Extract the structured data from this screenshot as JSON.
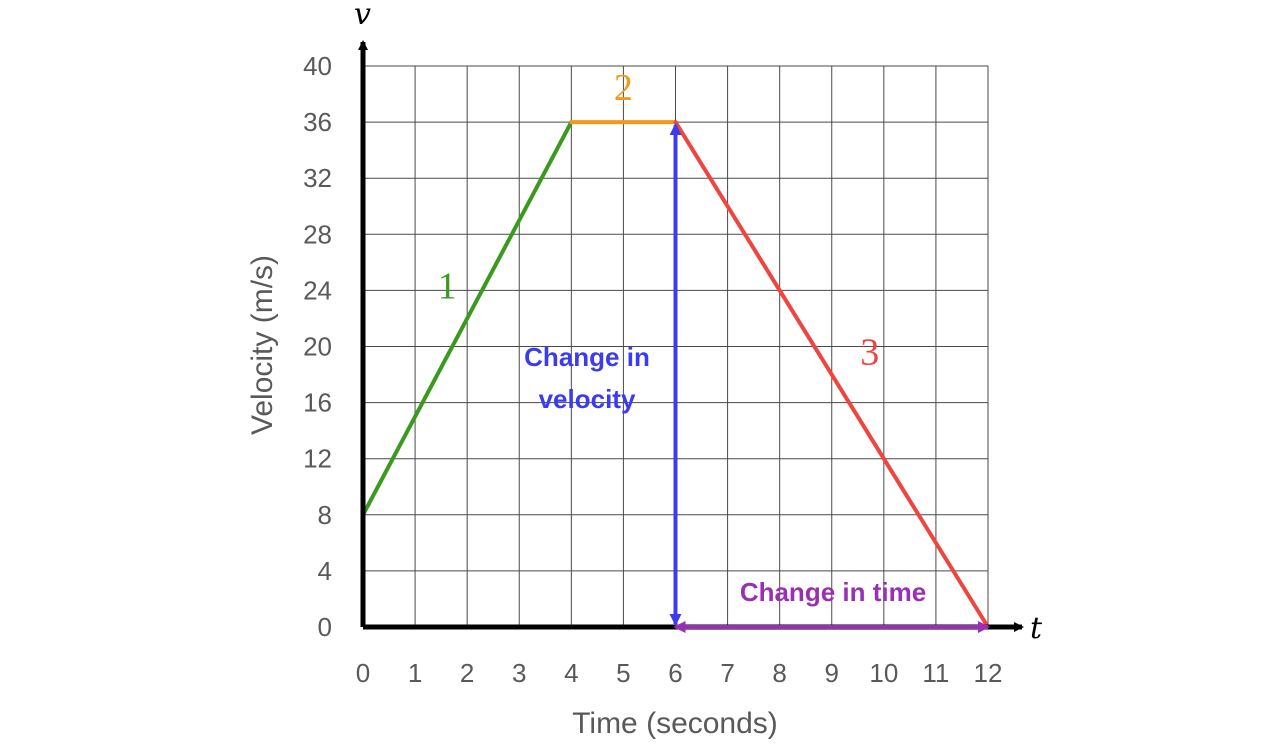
{
  "chart_data": {
    "type": "line",
    "xlabel": "Time (seconds)",
    "ylabel": "Velocity (m/s)",
    "x_axis_var": "t",
    "y_axis_var": "v",
    "xlim": [
      0,
      12
    ],
    "ylim": [
      0,
      40
    ],
    "xticks": [
      0,
      1,
      2,
      3,
      4,
      5,
      6,
      7,
      8,
      9,
      10,
      11,
      12
    ],
    "yticks": [
      0,
      4,
      8,
      12,
      16,
      20,
      24,
      28,
      32,
      36,
      40
    ],
    "grid": true,
    "series": [
      {
        "name": "1",
        "color": "#3a9a1e",
        "points": [
          [
            0,
            8
          ],
          [
            4,
            36
          ]
        ]
      },
      {
        "name": "2",
        "color": "#f39a1a",
        "points": [
          [
            4,
            36
          ],
          [
            6,
            36
          ]
        ]
      },
      {
        "name": "3",
        "color": "#ee4540",
        "points": [
          [
            6,
            36
          ],
          [
            12,
            0
          ]
        ]
      }
    ],
    "annotations": [
      {
        "text_lines": [
          "Change in",
          "velocity"
        ],
        "color": "#3b3bf0",
        "type": "vertical-double-arrow",
        "from": [
          6,
          0
        ],
        "to": [
          6,
          36
        ]
      },
      {
        "text_lines": [
          "Change in time"
        ],
        "color": "#9b2fb4",
        "type": "horizontal-double-arrow",
        "from": [
          6,
          0
        ],
        "to": [
          12,
          0
        ]
      }
    ]
  }
}
